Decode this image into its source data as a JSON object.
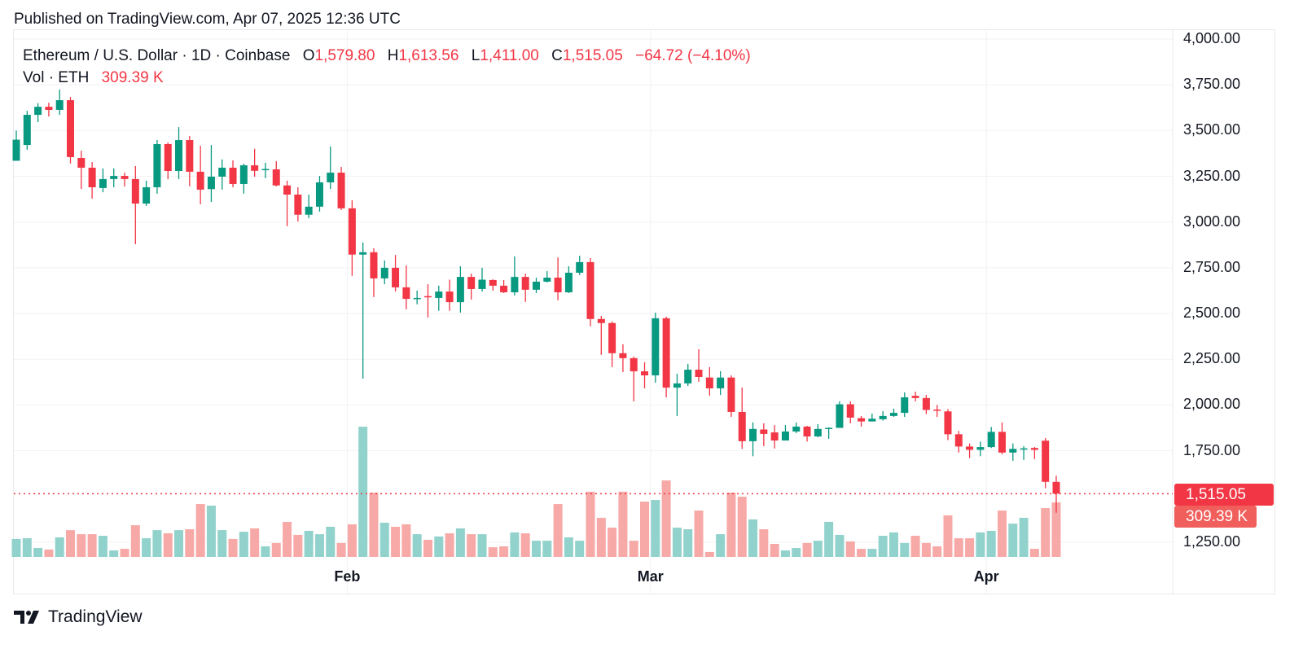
{
  "published": "Published on TradingView.com, Apr 07, 2025 12:36 UTC",
  "legend": {
    "symbol": "Ethereum / U.S. Dollar · 1D · Coinbase",
    "o_label": "O",
    "o_value": "1,579.80",
    "h_label": "H",
    "h_value": "1,613.56",
    "l_label": "L",
    "l_value": "1,411.00",
    "c_label": "C",
    "c_value": "1,515.05",
    "change": "−64.72 (−4.10%)",
    "vol_label": "Vol · ETH",
    "vol_value": "309.39 K"
  },
  "price_tag": "1,515.05",
  "vol_tag": "309.39 K",
  "brand": "TradingView",
  "colors": {
    "up": "#089981",
    "down": "#f23645",
    "vol_up": "#92d2cc",
    "vol_down": "#f7a9a7"
  },
  "chart_data": {
    "type": "candlestick",
    "title": "Ethereum / U.S. Dollar · 1D · Coinbase",
    "y_ticks": [
      "4,000.00",
      "3,750.00",
      "3,500.00",
      "3,250.00",
      "3,000.00",
      "2,750.00",
      "2,500.00",
      "2,250.00",
      "2,000.00",
      "1,750.00",
      "1,250.00"
    ],
    "y_tick_values": [
      4000,
      3750,
      3500,
      3250,
      3000,
      2750,
      2500,
      2250,
      2000,
      1750,
      1250
    ],
    "ylim": [
      1250,
      4000
    ],
    "x_ticks": [
      {
        "label": "Feb",
        "index": 31
      },
      {
        "label": "Mar",
        "index": 59
      },
      {
        "label": "Apr",
        "index": 90
      }
    ],
    "last_price": 1515.05,
    "ohlc": [
      [
        3335,
        3500,
        3335,
        3450
      ],
      [
        3421,
        3608,
        3395,
        3586
      ],
      [
        3586,
        3650,
        3546,
        3630
      ],
      [
        3630,
        3652,
        3577,
        3613
      ],
      [
        3613,
        3724,
        3586,
        3666
      ],
      [
        3666,
        3684,
        3320,
        3355
      ],
      [
        3350,
        3390,
        3181,
        3297
      ],
      [
        3297,
        3328,
        3128,
        3190
      ],
      [
        3186,
        3293,
        3163,
        3235
      ],
      [
        3235,
        3293,
        3190,
        3252
      ],
      [
        3252,
        3270,
        3194,
        3235
      ],
      [
        3235,
        3306,
        2879,
        3101
      ],
      [
        3101,
        3226,
        3088,
        3190
      ],
      [
        3190,
        3448,
        3155,
        3426
      ],
      [
        3426,
        3435,
        3234,
        3279
      ],
      [
        3279,
        3519,
        3235,
        3448
      ],
      [
        3448,
        3470,
        3195,
        3275
      ],
      [
        3275,
        3417,
        3097,
        3177
      ],
      [
        3180,
        3421,
        3110,
        3248
      ],
      [
        3248,
        3342,
        3177,
        3297
      ],
      [
        3297,
        3337,
        3190,
        3208
      ],
      [
        3208,
        3319,
        3155,
        3310
      ],
      [
        3310,
        3400,
        3248,
        3280
      ],
      [
        3284,
        3324,
        3240,
        3290
      ],
      [
        3288,
        3333,
        3195,
        3200
      ],
      [
        3200,
        3226,
        2977,
        3150
      ],
      [
        3150,
        3190,
        3003,
        3040
      ],
      [
        3040,
        3150,
        3021,
        3084
      ],
      [
        3084,
        3252,
        3057,
        3217
      ],
      [
        3217,
        3413,
        3181,
        3270
      ],
      [
        3270,
        3301,
        3066,
        3075
      ],
      [
        3075,
        3119,
        2706,
        2822
      ],
      [
        2822,
        2888,
        2144,
        2835
      ],
      [
        2835,
        2857,
        2590,
        2692
      ],
      [
        2692,
        2790,
        2660,
        2750
      ],
      [
        2750,
        2820,
        2620,
        2643
      ],
      [
        2643,
        2763,
        2523,
        2580
      ],
      [
        2580,
        2625,
        2550,
        2585
      ],
      [
        2595,
        2660,
        2478,
        2590
      ],
      [
        2585,
        2652,
        2515,
        2620
      ],
      [
        2620,
        2685,
        2515,
        2562
      ],
      [
        2562,
        2758,
        2505,
        2700
      ],
      [
        2700,
        2718,
        2576,
        2634
      ],
      [
        2634,
        2750,
        2620,
        2685
      ],
      [
        2683,
        2687,
        2625,
        2652
      ],
      [
        2652,
        2683,
        2612,
        2616
      ],
      [
        2616,
        2812,
        2599,
        2700
      ],
      [
        2700,
        2718,
        2563,
        2630
      ],
      [
        2630,
        2696,
        2612,
        2674
      ],
      [
        2674,
        2732,
        2670,
        2696
      ],
      [
        2696,
        2807,
        2572,
        2616
      ],
      [
        2616,
        2758,
        2612,
        2723
      ],
      [
        2723,
        2816,
        2710,
        2781
      ],
      [
        2781,
        2803,
        2430,
        2470
      ],
      [
        2470,
        2487,
        2274,
        2448
      ],
      [
        2448,
        2457,
        2207,
        2283
      ],
      [
        2283,
        2332,
        2180,
        2256
      ],
      [
        2256,
        2265,
        2020,
        2184
      ],
      [
        2184,
        2234,
        2091,
        2162
      ],
      [
        2162,
        2505,
        2122,
        2474
      ],
      [
        2474,
        2483,
        2042,
        2095
      ],
      [
        2095,
        2171,
        1940,
        2118
      ],
      [
        2118,
        2225,
        2104,
        2193
      ],
      [
        2193,
        2305,
        2127,
        2153
      ],
      [
        2150,
        2207,
        2051,
        2091
      ],
      [
        2091,
        2185,
        2055,
        2150
      ],
      [
        2150,
        2162,
        1935,
        1962
      ],
      [
        1962,
        2095,
        1760,
        1802
      ],
      [
        1802,
        1905,
        1720,
        1869
      ],
      [
        1866,
        1900,
        1775,
        1842
      ],
      [
        1850,
        1890,
        1762,
        1806
      ],
      [
        1806,
        1890,
        1806,
        1855
      ],
      [
        1855,
        1904,
        1846,
        1882
      ],
      [
        1882,
        1886,
        1800,
        1828
      ],
      [
        1828,
        1895,
        1824,
        1869
      ],
      [
        1870,
        1878,
        1815,
        1875
      ],
      [
        1875,
        2020,
        1875,
        2004
      ],
      [
        2004,
        2020,
        1900,
        1931
      ],
      [
        1928,
        1940,
        1882,
        1910
      ],
      [
        1910,
        1953,
        1910,
        1925
      ],
      [
        1922,
        1966,
        1915,
        1940
      ],
      [
        1940,
        1980,
        1935,
        1957
      ],
      [
        1957,
        2069,
        1935,
        2042
      ],
      [
        2050,
        2073,
        2020,
        2038
      ],
      [
        2038,
        2055,
        1950,
        1973
      ],
      [
        1975,
        2000,
        1935,
        1970
      ],
      [
        1965,
        1978,
        1808,
        1840
      ],
      [
        1840,
        1858,
        1740,
        1773
      ],
      [
        1773,
        1790,
        1710,
        1755
      ],
      [
        1755,
        1800,
        1720,
        1770
      ],
      [
        1770,
        1880,
        1765,
        1853
      ],
      [
        1853,
        1905,
        1730,
        1740
      ],
      [
        1740,
        1790,
        1695,
        1760
      ],
      [
        1757,
        1775,
        1700,
        1763
      ],
      [
        1765,
        1770,
        1705,
        1755
      ],
      [
        1805,
        1820,
        1545,
        1580
      ],
      [
        1579.8,
        1613.56,
        1411.0,
        1515.05
      ]
    ],
    "volume_k": [
      102,
      106,
      51,
      42,
      111,
      152,
      129,
      129,
      120,
      37,
      46,
      180,
      106,
      152,
      134,
      152,
      157,
      300,
      291,
      152,
      102,
      143,
      162,
      60,
      79,
      199,
      125,
      148,
      129,
      171,
      79,
      185,
      739,
      365,
      194,
      171,
      185,
      129,
      97,
      116,
      134,
      162,
      129,
      129,
      55,
      60,
      139,
      134,
      92,
      92,
      300,
      111,
      92,
      370,
      222,
      166,
      370,
      92,
      314,
      323,
      434,
      166,
      157,
      263,
      28,
      129,
      365,
      342,
      213,
      157,
      74,
      37,
      51,
      79,
      92,
      199,
      125,
      88,
      46,
      46,
      120,
      139,
      79,
      120,
      79,
      60,
      236,
      106,
      106,
      139,
      148,
      263,
      189,
      222,
      46,
      277,
      309.39
    ]
  }
}
